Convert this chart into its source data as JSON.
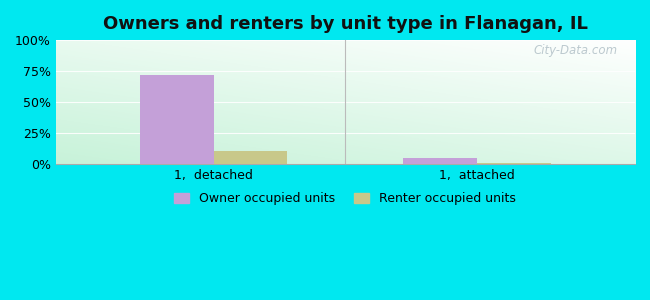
{
  "title": "Owners and renters by unit type in Flanagan, IL",
  "categories": [
    "1,  detached",
    "1,  attached"
  ],
  "owner_values": [
    72,
    5
  ],
  "renter_values": [
    11,
    1
  ],
  "owner_color": "#c4a0d8",
  "renter_color": "#c8c88a",
  "ylim": [
    0,
    100
  ],
  "yticks": [
    0,
    25,
    50,
    75,
    100
  ],
  "ytick_labels": [
    "0%",
    "25%",
    "50%",
    "75%",
    "100%"
  ],
  "background_outer": "#00e8f0",
  "legend_owner": "Owner occupied units",
  "legend_renter": "Renter occupied units",
  "bar_width": 0.28,
  "title_fontsize": 13,
  "watermark": "City-Data.com"
}
